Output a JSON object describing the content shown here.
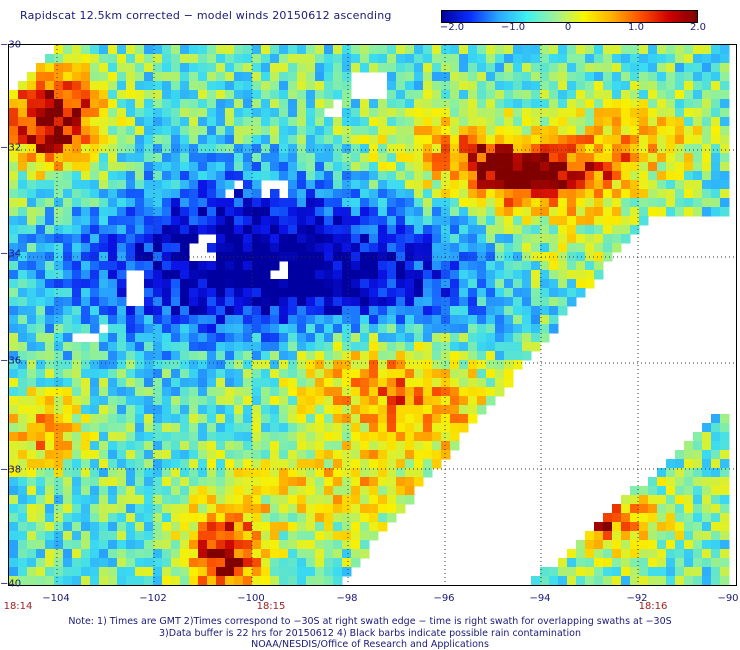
{
  "title": "Rapidscat 12.5km corrected − model winds 20150612 ascending",
  "colorbar": {
    "labels": [
      "−2.0",
      "−1.0",
      "0",
      "1.0",
      "2.0"
    ],
    "stops": [
      "#0000a0",
      "#0a2fff",
      "#2aa8ff",
      "#40f0f0",
      "#9ff09a",
      "#f7f700",
      "#ffb000",
      "#ff5000",
      "#d00000",
      "#800000"
    ]
  },
  "axes": {
    "lat_labels": [
      "−30",
      "−32",
      "−34",
      "−36",
      "−38",
      "−40"
    ],
    "lon_labels": [
      "−104",
      "−102",
      "−100",
      "−98",
      "−96",
      "−94",
      "−92",
      "−90"
    ],
    "lat_range": [
      -40,
      -30
    ],
    "lon_range": [
      -105,
      -90
    ]
  },
  "times": [
    "18:14",
    "18:15",
    "18:16"
  ],
  "notes": [
    "Note: 1) Times are GMT 2)Times correspond to −30S at right swath edge − time is right swath for overlapping swaths at −30S",
    "3)Data buffer is 22 hrs for 20150612 4) Black barbs indicate possible rain contamination",
    "NOAA/NESDIS/Office of Research and Applications"
  ]
}
